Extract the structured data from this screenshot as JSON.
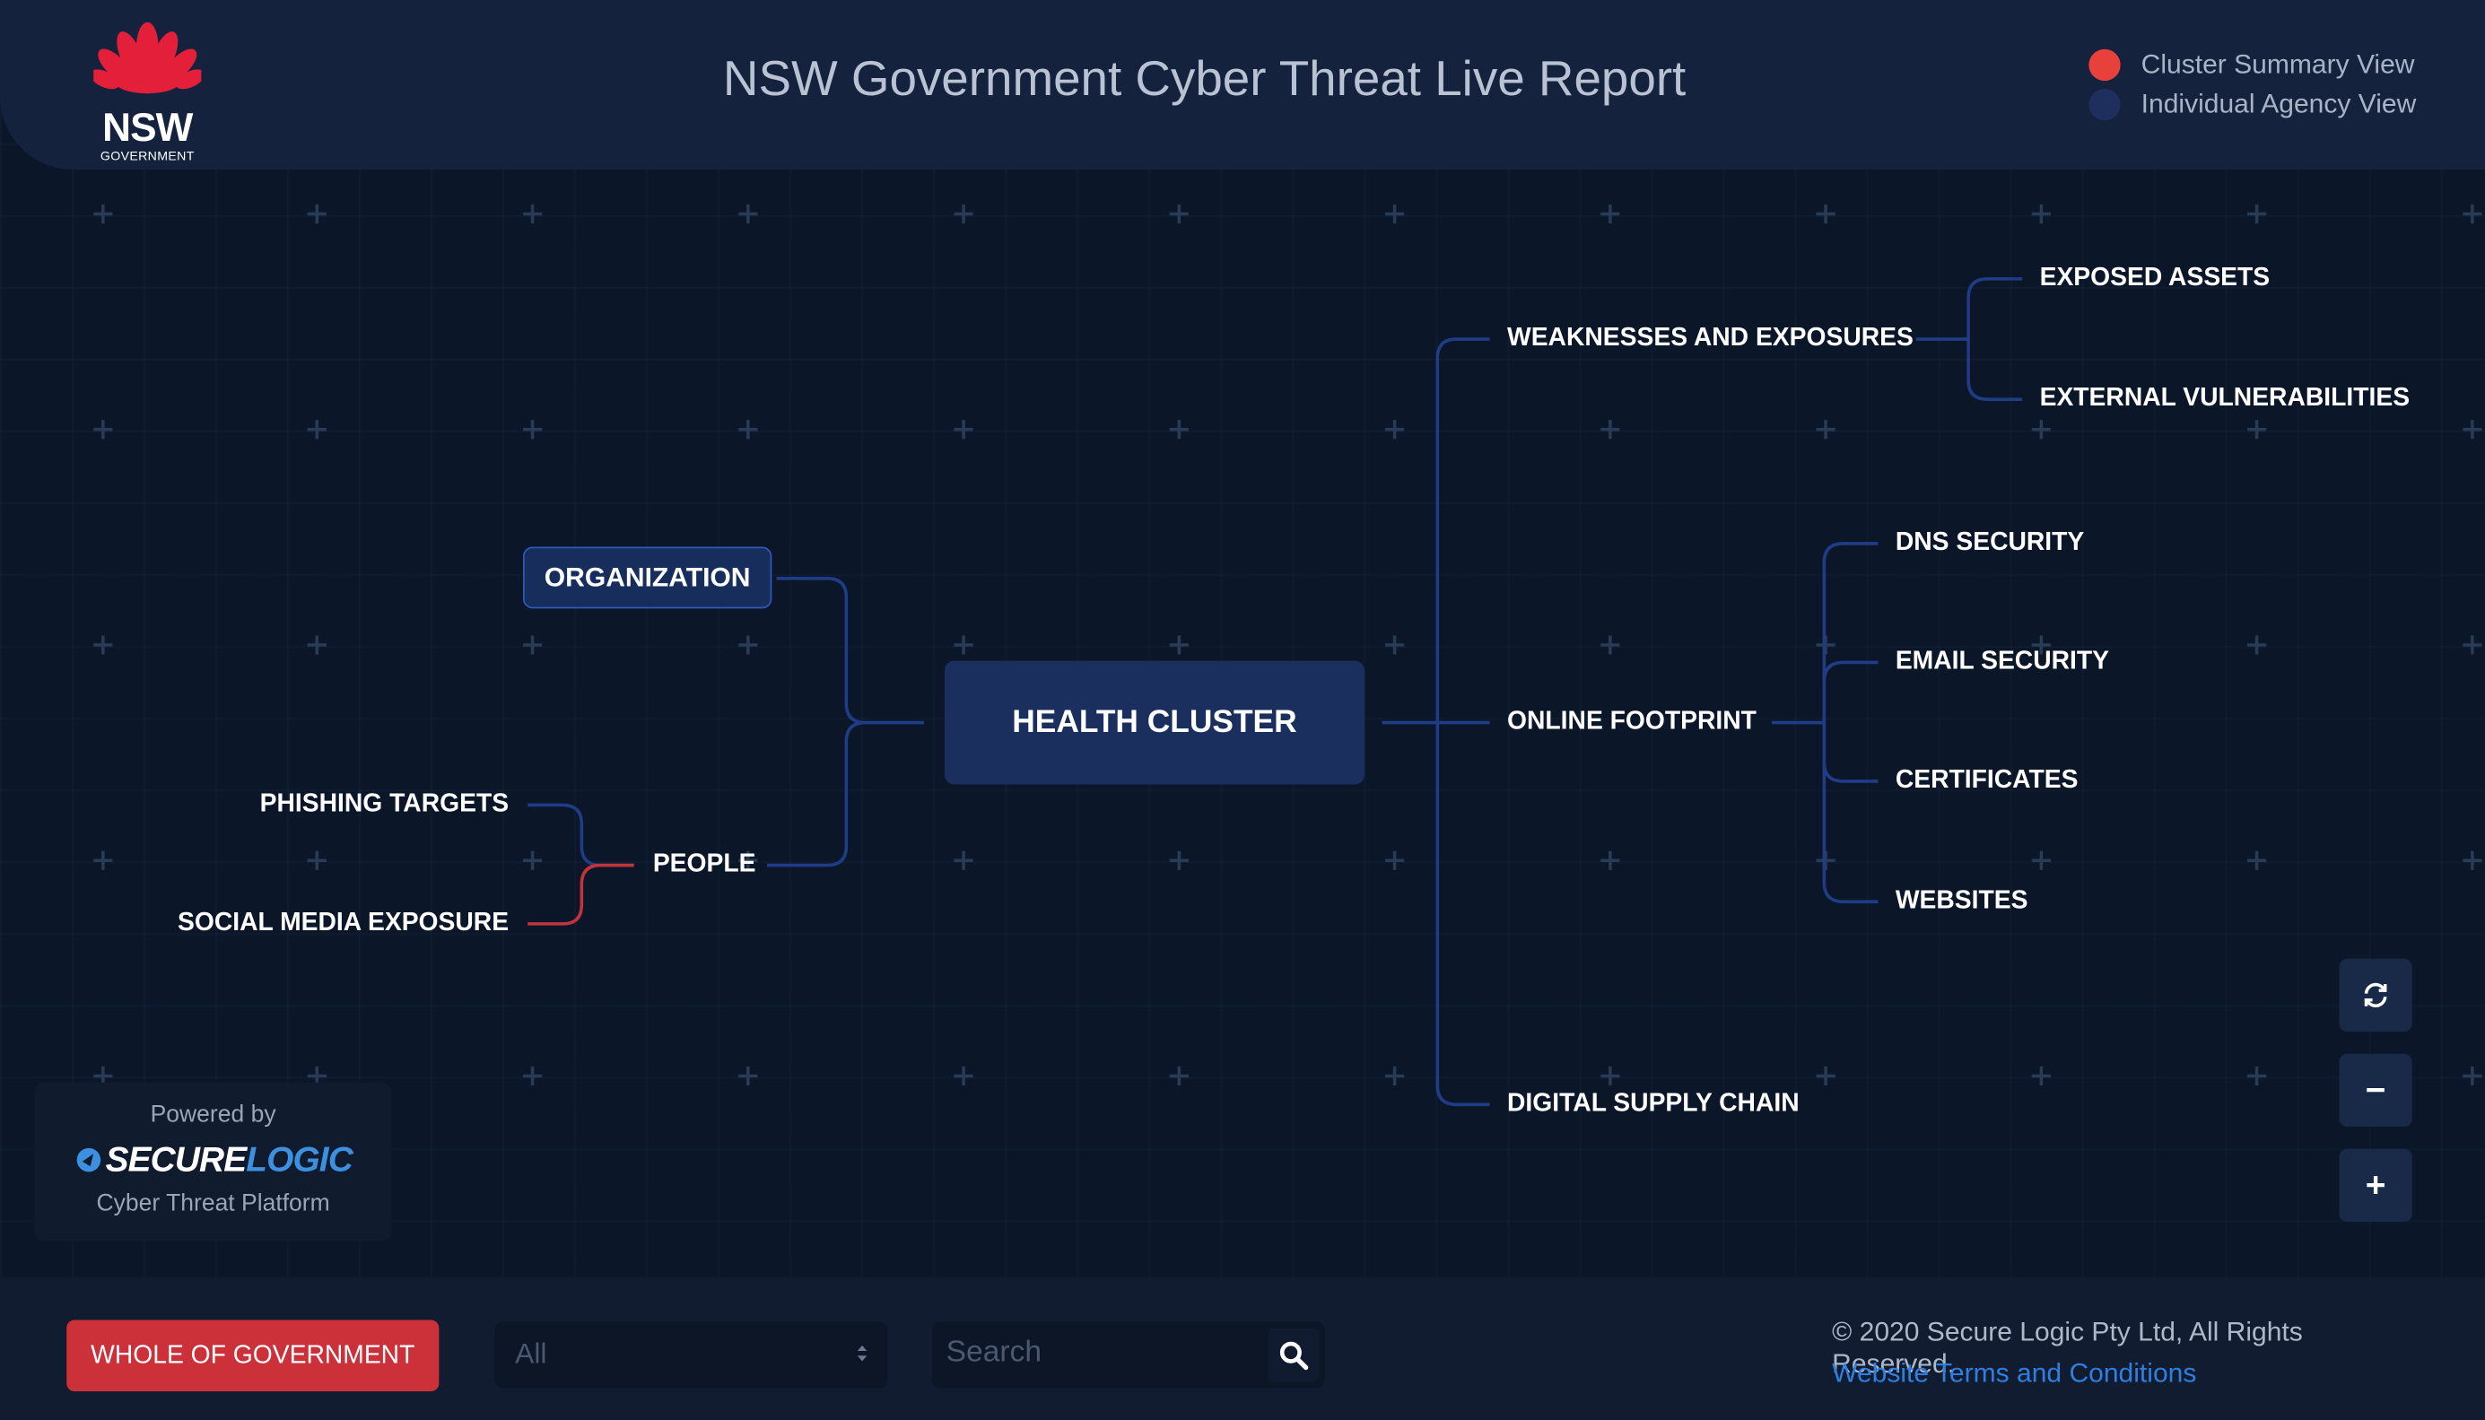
{
  "header": {
    "title": "NSW Government Cyber Threat Live Report",
    "logo": {
      "name": "NSW",
      "sub": "GOVERNMENT"
    }
  },
  "legend": [
    {
      "label": "Cluster Summary View",
      "color": "#e8413c"
    },
    {
      "label": "Individual Agency View",
      "color": "#1e2f5e"
    }
  ],
  "mindmap": {
    "center": "HEALTH CLUSTER",
    "organization": "ORGANIZATION",
    "people": "PEOPLE",
    "phishing_targets": "PHISHING TARGETS",
    "social_media_exposure": "SOCIAL MEDIA EXPOSURE",
    "weaknesses": "WEAKNESSES AND EXPOSURES",
    "exposed_assets": "EXPOSED ASSETS",
    "external_vulnerabilities": "EXTERNAL VULNERABILITIES",
    "online_footprint": "ONLINE FOOTPRINT",
    "dns_security": "DNS SECURITY",
    "email_security": "EMAIL SECURITY",
    "certificates": "CERTIFICATES",
    "websites": "WEBSITES",
    "digital_supply_chain": "DIGITAL SUPPLY CHAIN"
  },
  "colors": {
    "link": "#1f3c86",
    "highlight_link": "#c2333b",
    "background": "#0b1629"
  },
  "controls": {
    "refresh_icon": "refresh-icon",
    "zoom_out": "−",
    "zoom_in": "+"
  },
  "powered": {
    "by": "Powered by",
    "brand_a": "SECURE",
    "brand_b": "LOGIC",
    "platform": "Cyber Threat Platform"
  },
  "footer": {
    "whole_of_government": "WHOLE OF GOVERNMENT",
    "select_value": "All",
    "search_placeholder": "Search",
    "copyright": "© 2020 Secure Logic Pty Ltd, All Rights Reserved.",
    "terms": "Website Terms and Conditions"
  }
}
